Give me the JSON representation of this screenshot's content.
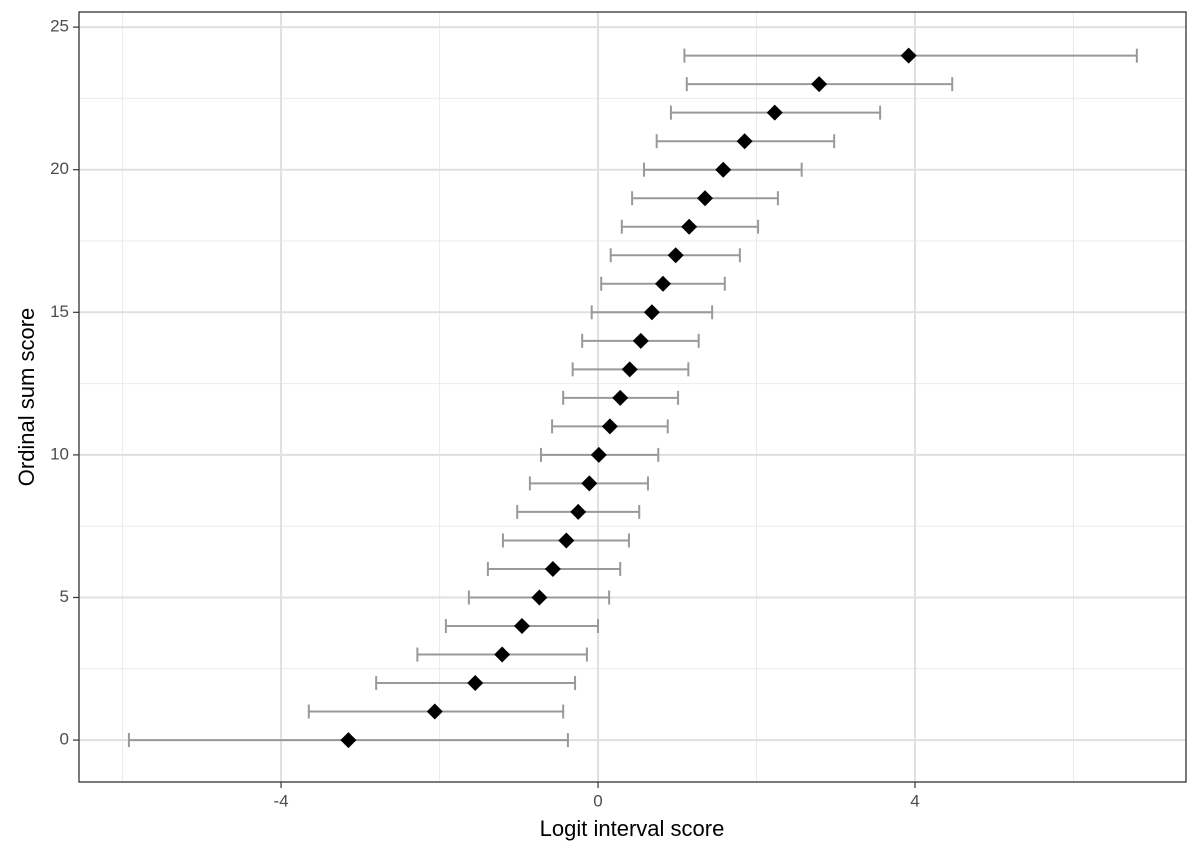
{
  "chart_data": {
    "type": "interval",
    "x_label": "Logit interval score",
    "y_label": "Ordinal sum score",
    "y": [
      0,
      1,
      2,
      3,
      4,
      5,
      6,
      7,
      8,
      9,
      10,
      11,
      12,
      13,
      14,
      15,
      16,
      17,
      18,
      19,
      20,
      21,
      22,
      23,
      24
    ],
    "x": [
      -3.15,
      -2.06,
      -1.55,
      -1.21,
      -0.96,
      -0.74,
      -0.57,
      -0.4,
      -0.25,
      -0.11,
      0.01,
      0.15,
      0.28,
      0.4,
      0.54,
      0.68,
      0.82,
      0.98,
      1.15,
      1.35,
      1.58,
      1.85,
      2.23,
      2.79,
      3.92
    ],
    "lower": [
      -5.92,
      -3.65,
      -2.8,
      -2.28,
      -1.92,
      -1.63,
      -1.39,
      -1.2,
      -1.02,
      -0.86,
      -0.72,
      -0.58,
      -0.44,
      -0.32,
      -0.2,
      -0.08,
      0.04,
      0.16,
      0.3,
      0.43,
      0.58,
      0.74,
      0.92,
      1.12,
      1.09
    ],
    "upper": [
      -0.38,
      -0.44,
      -0.29,
      -0.14,
      0.0,
      0.14,
      0.28,
      0.39,
      0.52,
      0.63,
      0.76,
      0.88,
      1.01,
      1.14,
      1.27,
      1.44,
      1.6,
      1.79,
      2.02,
      2.27,
      2.57,
      2.98,
      3.56,
      4.47,
      6.8
    ],
    "point_color": "#000000",
    "interval_color": "#999999",
    "xlim": [
      -6.55,
      7.42
    ],
    "ylim": [
      -1.47,
      25.53
    ],
    "xticks": [
      -4,
      0,
      4
    ],
    "yticks": [
      0,
      5,
      10,
      15,
      20,
      25
    ],
    "xminor": [
      -6,
      -2,
      2,
      6
    ],
    "yminor": [
      2.5,
      7.5,
      12.5,
      17.5,
      22.5
    ],
    "grid": true
  }
}
